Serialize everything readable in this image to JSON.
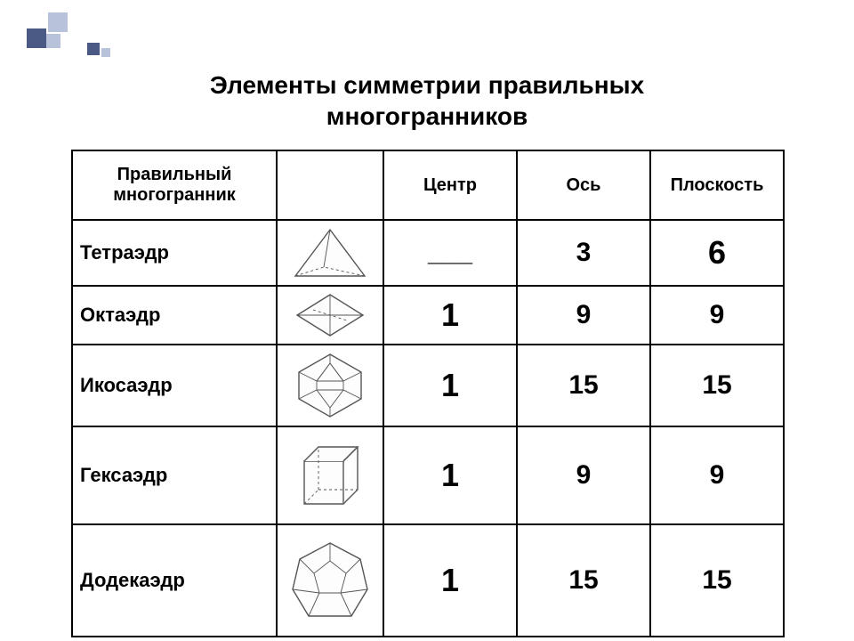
{
  "title_line1": "Элементы симметрии правильных",
  "title_line2": "многогранников",
  "decor": {
    "color_dark": "#4a5a84",
    "color_light": "#b8c2da"
  },
  "table": {
    "header": {
      "name": "Правильный многогранник",
      "shape": "",
      "center": "Центр",
      "axis": "Ось",
      "plane": "Плоскость"
    },
    "rows": [
      {
        "name": "Тетраэдр",
        "center": "___",
        "axis": "3",
        "plane": "6",
        "center_fs": "fs30",
        "axis_fs": "fs30",
        "plane_fs": "fs36",
        "row_h": "r-short",
        "shape": "tetra"
      },
      {
        "name": "Октаэдр",
        "center": "1",
        "axis": "9",
        "plane": "9",
        "center_fs": "fs36",
        "axis_fs": "fs30",
        "plane_fs": "fs30",
        "row_h": "r-short",
        "shape": "octa"
      },
      {
        "name": "Икосаэдр",
        "center": "1",
        "axis": "15",
        "plane": "15",
        "center_fs": "fs36",
        "axis_fs": "fs30",
        "plane_fs": "fs30",
        "row_h": "r-med",
        "shape": "icosa"
      },
      {
        "name": "Гексаэдр",
        "center": "1",
        "axis": "9",
        "plane": "9",
        "center_fs": "fs36",
        "axis_fs": "fs30",
        "plane_fs": "fs30",
        "row_h": "r-tall",
        "shape": "hexa"
      },
      {
        "name": "Додекаэдр",
        "center": "1",
        "axis": "15",
        "plane": "15",
        "center_fs": "fs36",
        "axis_fs": "fs30",
        "plane_fs": "fs30",
        "row_h": "r-xtall",
        "shape": "dodeca"
      }
    ],
    "shape_stroke": "#555555",
    "shape_fill": "#fdfdfd",
    "thin": 0.9,
    "thick": 1.4
  }
}
